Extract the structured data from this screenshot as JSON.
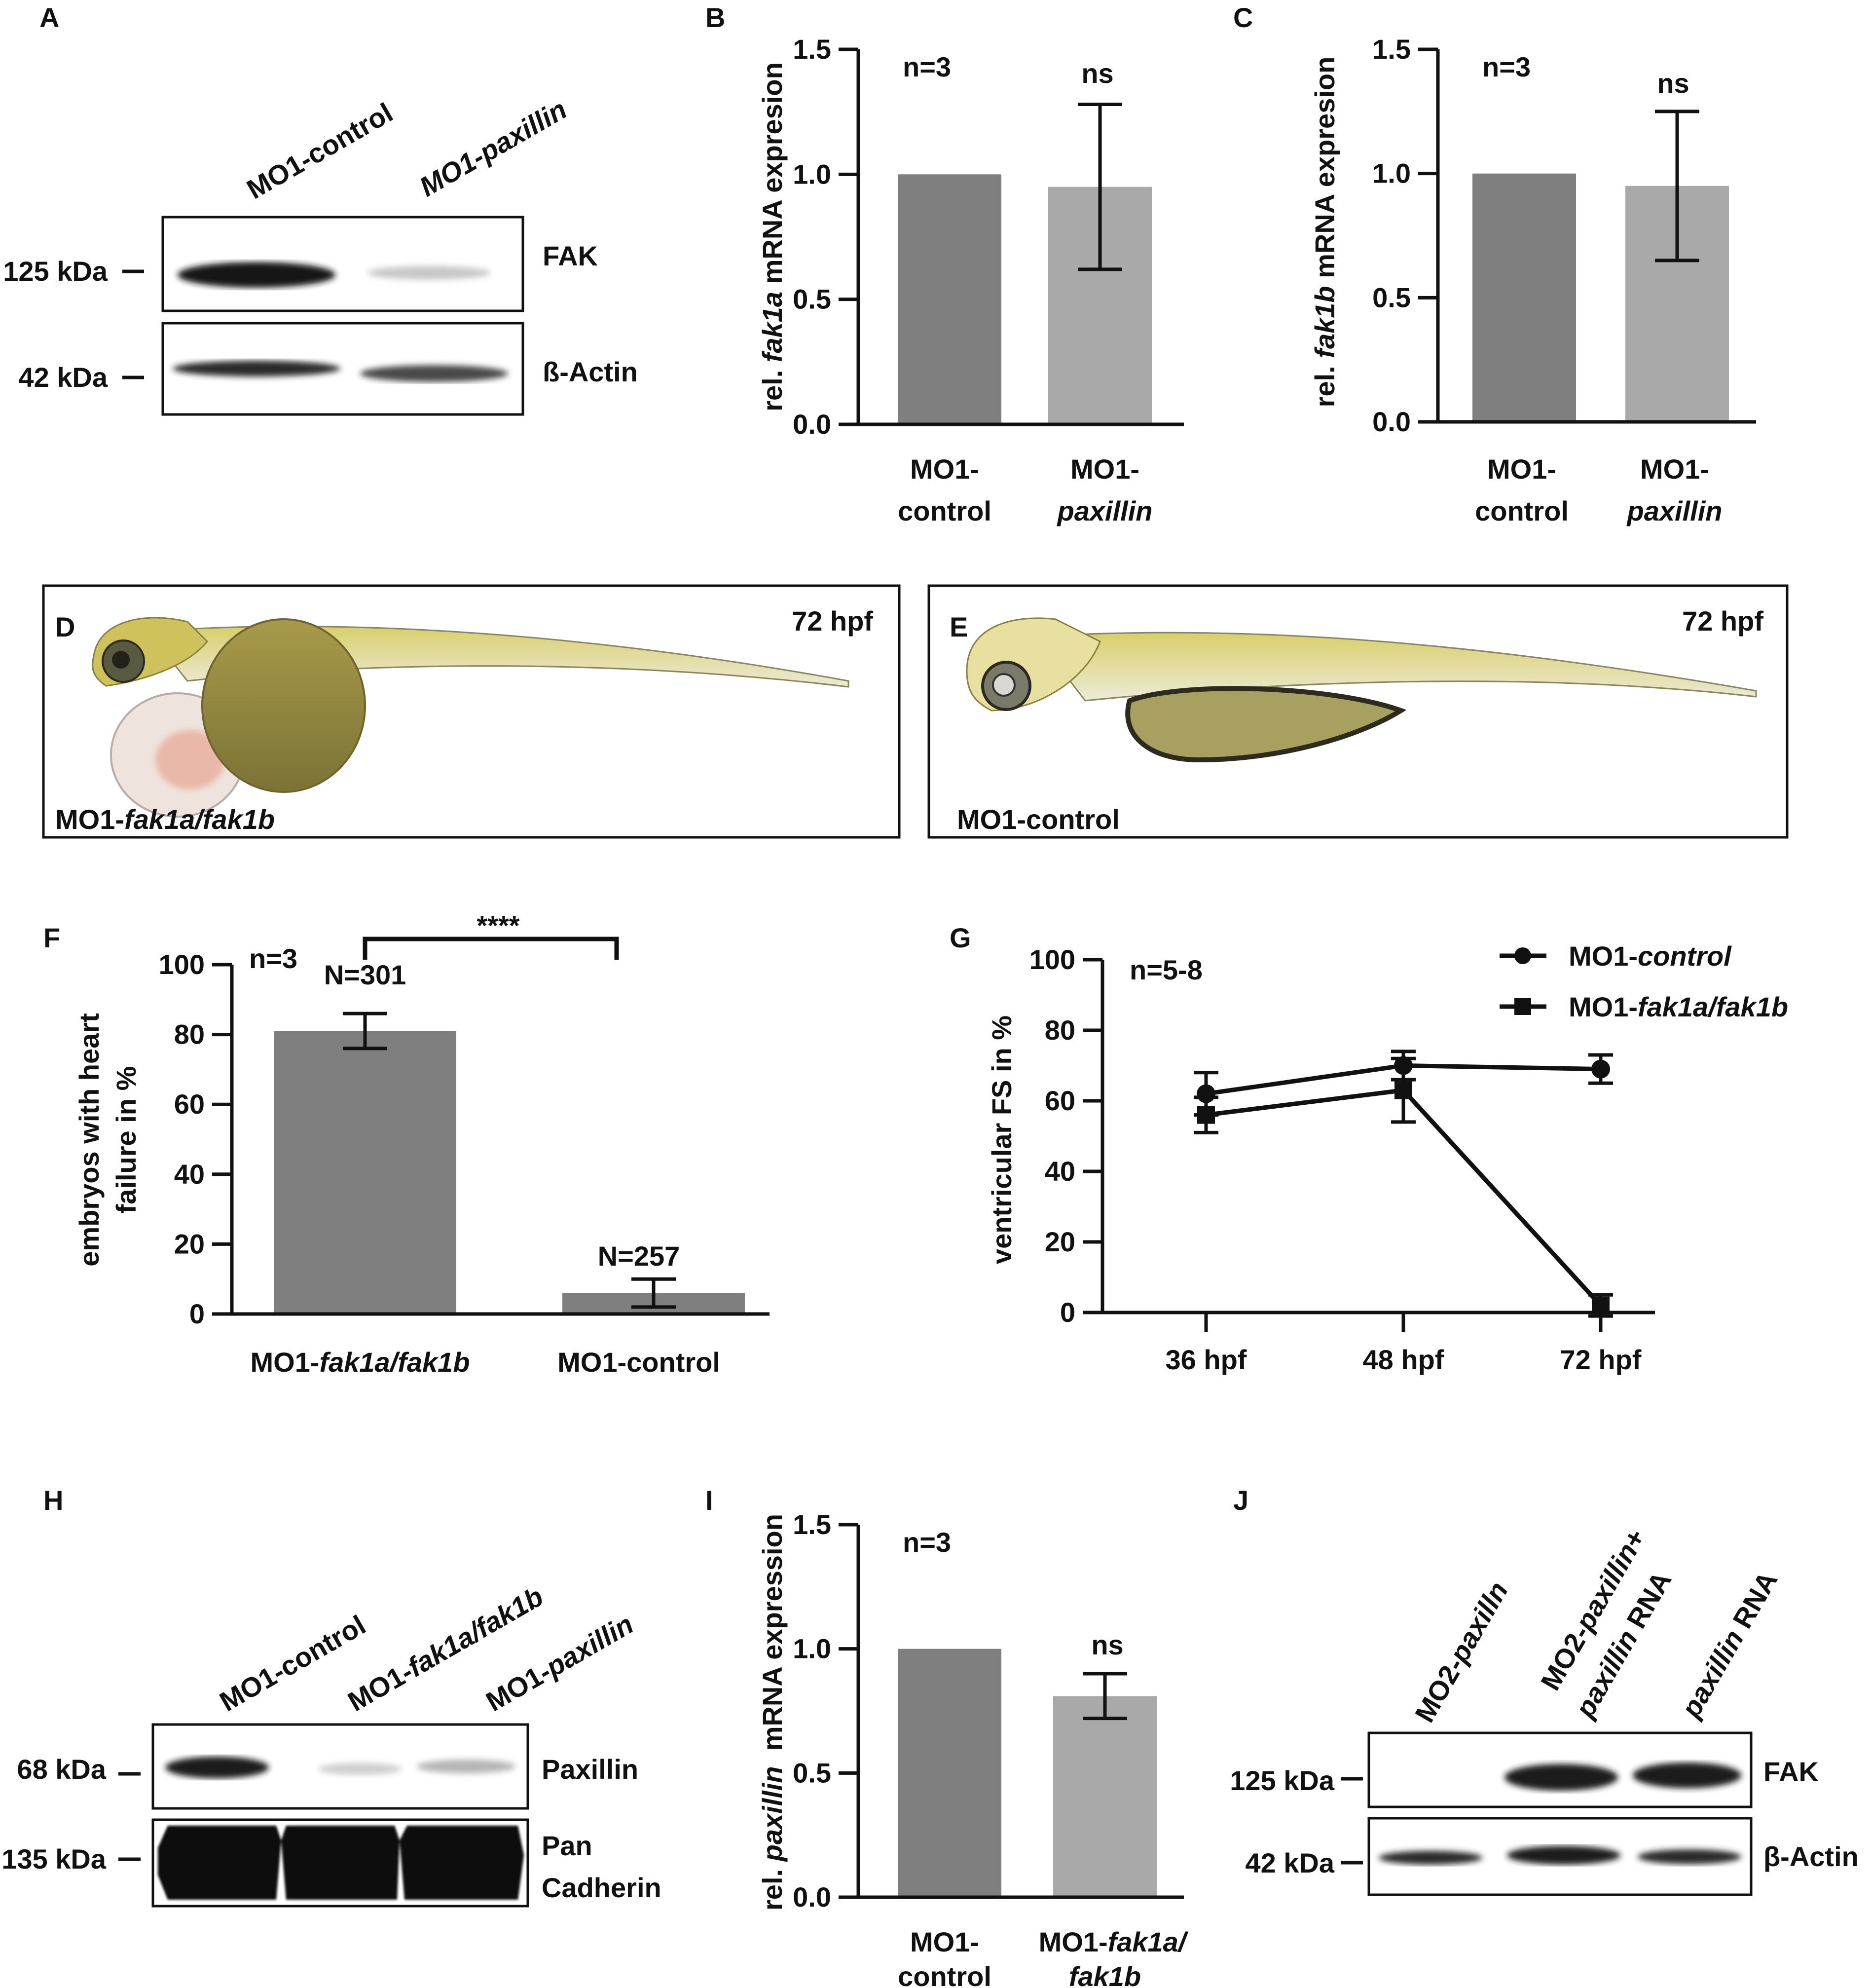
{
  "colors": {
    "dark_bar": "#7f7f7f",
    "light_bar": "#a9a9a9",
    "axis": "#111111"
  },
  "panels": {
    "A": {
      "letter": "A",
      "lanes": [
        "MO1-control",
        "MO1-paxillin"
      ],
      "rows": [
        {
          "marker": "125 kDa",
          "label": "FAK",
          "bands": [
            0.95,
            0.15
          ]
        },
        {
          "marker": "42 kDa",
          "label": "ß-Actin",
          "bands": [
            0.85,
            0.75
          ]
        }
      ]
    },
    "D": {
      "letter": "D",
      "timepoint": "72 hpf",
      "caption_prefix": "MO1-",
      "caption_italic": "fak1a/fak1b"
    },
    "E": {
      "letter": "E",
      "timepoint": "72 hpf",
      "caption": "MO1-control"
    },
    "H": {
      "letter": "H",
      "lanes": [
        "MO1-control",
        "MO1-fak1a/fak1b",
        "MO1-paxillin"
      ],
      "rows": [
        {
          "marker": "68 kDa",
          "label": "Paxillin",
          "bands": [
            0.9,
            0.2,
            0.3
          ]
        },
        {
          "marker": "135 kDa",
          "label": "Pan",
          "label2": "Cadherin",
          "bands": [
            1.0,
            1.0,
            1.0
          ]
        }
      ]
    },
    "J": {
      "letter": "J",
      "lanes": [
        "MO2-paxillin",
        "MO2-paxillin+",
        "paxillin RNA",
        "paxillin RNA"
      ],
      "rows": [
        {
          "marker": "125 kDa",
          "label": "FAK",
          "bands": [
            0.0,
            0.95,
            0.95
          ]
        },
        {
          "marker": "42 kDa",
          "label": "β-Actin",
          "bands": [
            0.8,
            0.9,
            0.75
          ]
        }
      ]
    }
  },
  "chart_data": [
    {
      "panel": "B",
      "type": "bar",
      "letter": "B",
      "ylabel_pre": "rel. ",
      "ylabel_it": "fak1a",
      "ylabel_post": " mRNA expresion",
      "ylim": [
        0,
        1.5
      ],
      "ticks": [
        "0.0",
        "0.5",
        "1.0",
        "1.5"
      ],
      "tick_values": [
        0,
        0.5,
        1.0,
        1.5
      ],
      "categories": [
        {
          "line1": "MO1-",
          "line2": "control",
          "italic2": false
        },
        {
          "line1": "MO1-",
          "line2": "paxillin",
          "italic2": true
        }
      ],
      "values": [
        1.0,
        0.95
      ],
      "errors": [
        0,
        0.33
      ],
      "annotations": {
        "n": "n=3",
        "sig": "ns"
      }
    },
    {
      "panel": "C",
      "type": "bar",
      "letter": "C",
      "ylabel_pre": "rel. ",
      "ylabel_it": "fak1b",
      "ylabel_post": " mRNA expresion",
      "ylim": [
        0,
        1.5
      ],
      "ticks": [
        "0.0",
        "0.5",
        "1.0",
        "1.5"
      ],
      "tick_values": [
        0,
        0.5,
        1.0,
        1.5
      ],
      "categories": [
        {
          "line1": "MO1-",
          "line2": "control",
          "italic2": false
        },
        {
          "line1": "MO1-",
          "line2": "paxillin",
          "italic2": true
        }
      ],
      "values": [
        1.0,
        0.95
      ],
      "errors": [
        0,
        0.3
      ],
      "annotations": {
        "n": "n=3",
        "sig": "ns"
      }
    },
    {
      "panel": "F",
      "type": "bar",
      "letter": "F",
      "ylabel_line1": "embryos with heart",
      "ylabel_line2": "failure in %",
      "ylim": [
        0,
        100
      ],
      "ticks": [
        "0",
        "20",
        "40",
        "60",
        "80",
        "100"
      ],
      "tick_values": [
        0,
        20,
        40,
        60,
        80,
        100
      ],
      "categories": [
        {
          "prefix": "MO1-",
          "italic": "fak1a/fak1b"
        },
        {
          "prefix": "MO1-control",
          "italic": ""
        }
      ],
      "values": [
        81,
        6
      ],
      "errors": [
        5,
        4
      ],
      "group_n": [
        "N=301",
        "N=257"
      ],
      "annotations": {
        "n": "n=3",
        "sig": "****"
      }
    },
    {
      "panel": "G",
      "type": "line",
      "letter": "G",
      "ylabel": "ventricular FS in %",
      "ylim": [
        0,
        100
      ],
      "ticks": [
        "0",
        "20",
        "40",
        "60",
        "80",
        "100"
      ],
      "tick_values": [
        0,
        20,
        40,
        60,
        80,
        100
      ],
      "x": [
        "36 hpf",
        "48 hpf",
        "72 hpf"
      ],
      "series": [
        {
          "name_pre": "MO1-",
          "name_it": "control",
          "marker": "circle",
          "values": [
            62,
            70,
            69
          ],
          "errors": [
            6,
            4,
            4
          ]
        },
        {
          "name_pre": "MO1-",
          "name_it": "fak1a/fak1b",
          "marker": "square",
          "values": [
            56,
            63,
            2
          ],
          "errors": [
            5,
            9,
            3
          ]
        }
      ],
      "annotations": {
        "n": "n=5-8"
      }
    },
    {
      "panel": "I",
      "type": "bar",
      "letter": "I",
      "ylabel_pre": "rel. ",
      "ylabel_it": "paxillin",
      "ylabel_post": "  mRNA expression",
      "ylim": [
        0,
        1.5
      ],
      "ticks": [
        "0.0",
        "0.5",
        "1.0",
        "1.5"
      ],
      "tick_values": [
        0,
        0.5,
        1.0,
        1.5
      ],
      "categories": [
        {
          "line1": "MO1-",
          "line2": "control",
          "italic1": "",
          "italic2": false
        },
        {
          "line1": "MO1-",
          "line1_it": "fak1a/",
          "line2": "fak1b",
          "italic2": true
        }
      ],
      "values": [
        1.0,
        0.81
      ],
      "errors": [
        0,
        0.09
      ],
      "annotations": {
        "n": "n=3",
        "sig": "ns"
      }
    }
  ]
}
